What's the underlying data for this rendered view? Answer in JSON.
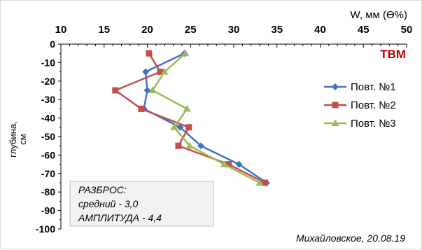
{
  "chart_data": {
    "type": "line",
    "x_axis_label": "W, мм (Ө%)",
    "y_axis_label_lines": [
      "глубина,",
      "см"
    ],
    "xlim": [
      10,
      50
    ],
    "ylim": [
      -100,
      0
    ],
    "x_ticks": [
      "10",
      "15",
      "20",
      "25",
      "30",
      "35",
      "40",
      "45",
      "50"
    ],
    "y_ticks": [
      "0",
      "-10",
      "-20",
      "-30",
      "-40",
      "-50",
      "-60",
      "-70",
      "-80",
      "-90",
      "-100"
    ],
    "x_axis_position": "top",
    "grid": false,
    "legend_position": "right",
    "tag": "ТВМ",
    "annotation_lines": [
      "РАЗБРОС:",
      "средний - 3,0",
      "АМПЛИТУДА - 4,4"
    ],
    "footer": "Михайловское, 20.08.19",
    "series": [
      {
        "name": "Повт. №1",
        "color": "#4472c4",
        "marker": "diamond",
        "points": [
          [
            24.3,
            -5
          ],
          [
            19.8,
            -15
          ],
          [
            20.0,
            -25
          ],
          [
            19.6,
            -35
          ],
          [
            23.8,
            -45
          ],
          [
            26.2,
            -55
          ],
          [
            30.6,
            -65
          ],
          [
            33.8,
            -75
          ]
        ]
      },
      {
        "name": "Повт. №2",
        "color": "#c0504d",
        "marker": "square",
        "points": [
          [
            20.2,
            -5
          ],
          [
            21.5,
            -15
          ],
          [
            16.3,
            -25
          ],
          [
            19.3,
            -35
          ],
          [
            24.8,
            -45
          ],
          [
            23.6,
            -55
          ],
          [
            29.4,
            -65
          ],
          [
            33.6,
            -75
          ]
        ]
      },
      {
        "name": "Повт. №3",
        "color": "#9bbb59",
        "marker": "triangle",
        "points": [
          [
            24.4,
            -5
          ],
          [
            22.0,
            -15
          ],
          [
            20.6,
            -25
          ],
          [
            24.6,
            -35
          ],
          [
            23.1,
            -45
          ],
          [
            24.9,
            -55
          ],
          [
            28.9,
            -65
          ],
          [
            33.0,
            -75
          ]
        ]
      }
    ]
  }
}
